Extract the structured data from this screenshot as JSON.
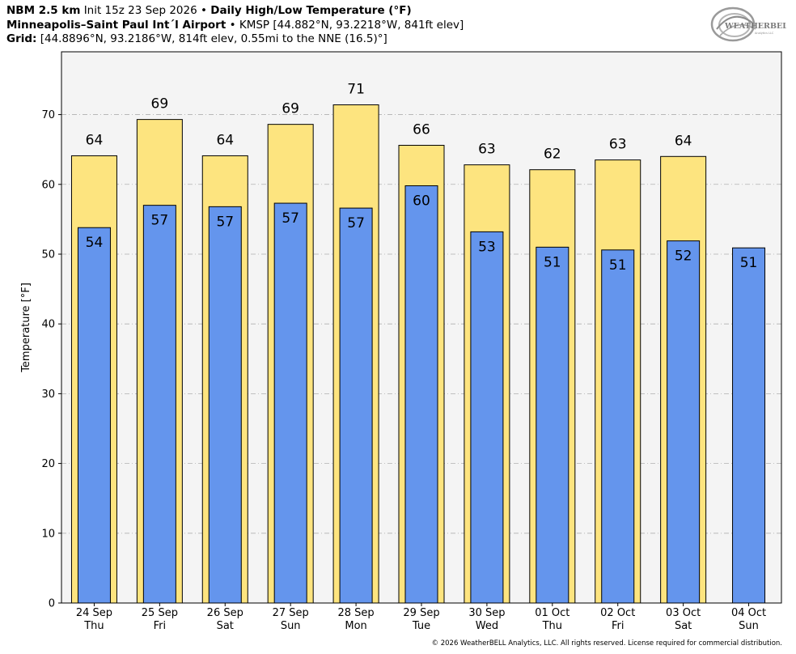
{
  "header": {
    "line1": {
      "model": "NBM 2.5 km",
      "init": "Init 15z 23 Sep 2026",
      "sep": "•",
      "product": "Daily High/Low Temperature (°F)"
    },
    "line2": {
      "station": "Minneapolis–Saint Paul Int´l Airport",
      "sep": "•",
      "details": "KMSP [44.882°N, 93.2218°W, 841ft elev]"
    },
    "line3": {
      "label": "Grid:",
      "details": "[44.8896°N, 93.2186°W, 814ft elev, 0.55mi to the NNE (16.5)°]"
    }
  },
  "logo": {
    "text_main": "WEATHERBELL",
    "text_sub": "Analytics LLC"
  },
  "footer": "© 2026 WeatherBELL Analytics, LLC. All rights reserved. License required for commercial distribution.",
  "colors": {
    "high_fill": "#fde47f",
    "low_fill": "#6495ed",
    "plot_bg": "#f4f4f4",
    "grid": "#b0b0b0"
  },
  "chart_data": {
    "type": "bar",
    "ylabel": "Temperature [°F]",
    "ylim": [
      0,
      79
    ],
    "yticks": [
      0,
      10,
      20,
      30,
      40,
      50,
      60,
      70
    ],
    "grid": "horizontal dashed",
    "categories": [
      {
        "date": "24 Sep",
        "day": "Thu"
      },
      {
        "date": "25 Sep",
        "day": "Fri"
      },
      {
        "date": "26 Sep",
        "day": "Sat"
      },
      {
        "date": "27 Sep",
        "day": "Sun"
      },
      {
        "date": "28 Sep",
        "day": "Mon"
      },
      {
        "date": "29 Sep",
        "day": "Tue"
      },
      {
        "date": "30 Sep",
        "day": "Wed"
      },
      {
        "date": "01 Oct",
        "day": "Thu"
      },
      {
        "date": "02 Oct",
        "day": "Fri"
      },
      {
        "date": "03 Oct",
        "day": "Sat"
      },
      {
        "date": "04 Oct",
        "day": "Sun"
      }
    ],
    "series": [
      {
        "name": "High",
        "values": [
          64.1,
          69.3,
          64.1,
          68.6,
          71.4,
          65.6,
          62.8,
          62.1,
          63.5,
          64.0,
          null
        ],
        "labels": [
          "64",
          "69",
          "64",
          "69",
          "71",
          "66",
          "63",
          "62",
          "63",
          "64",
          null
        ]
      },
      {
        "name": "Low",
        "values": [
          53.8,
          57.0,
          56.8,
          57.3,
          56.6,
          59.8,
          53.2,
          51.0,
          50.6,
          51.9,
          50.9
        ],
        "labels": [
          "54",
          "57",
          "57",
          "57",
          "57",
          "60",
          "53",
          "51",
          "51",
          "52",
          "51"
        ]
      }
    ]
  }
}
